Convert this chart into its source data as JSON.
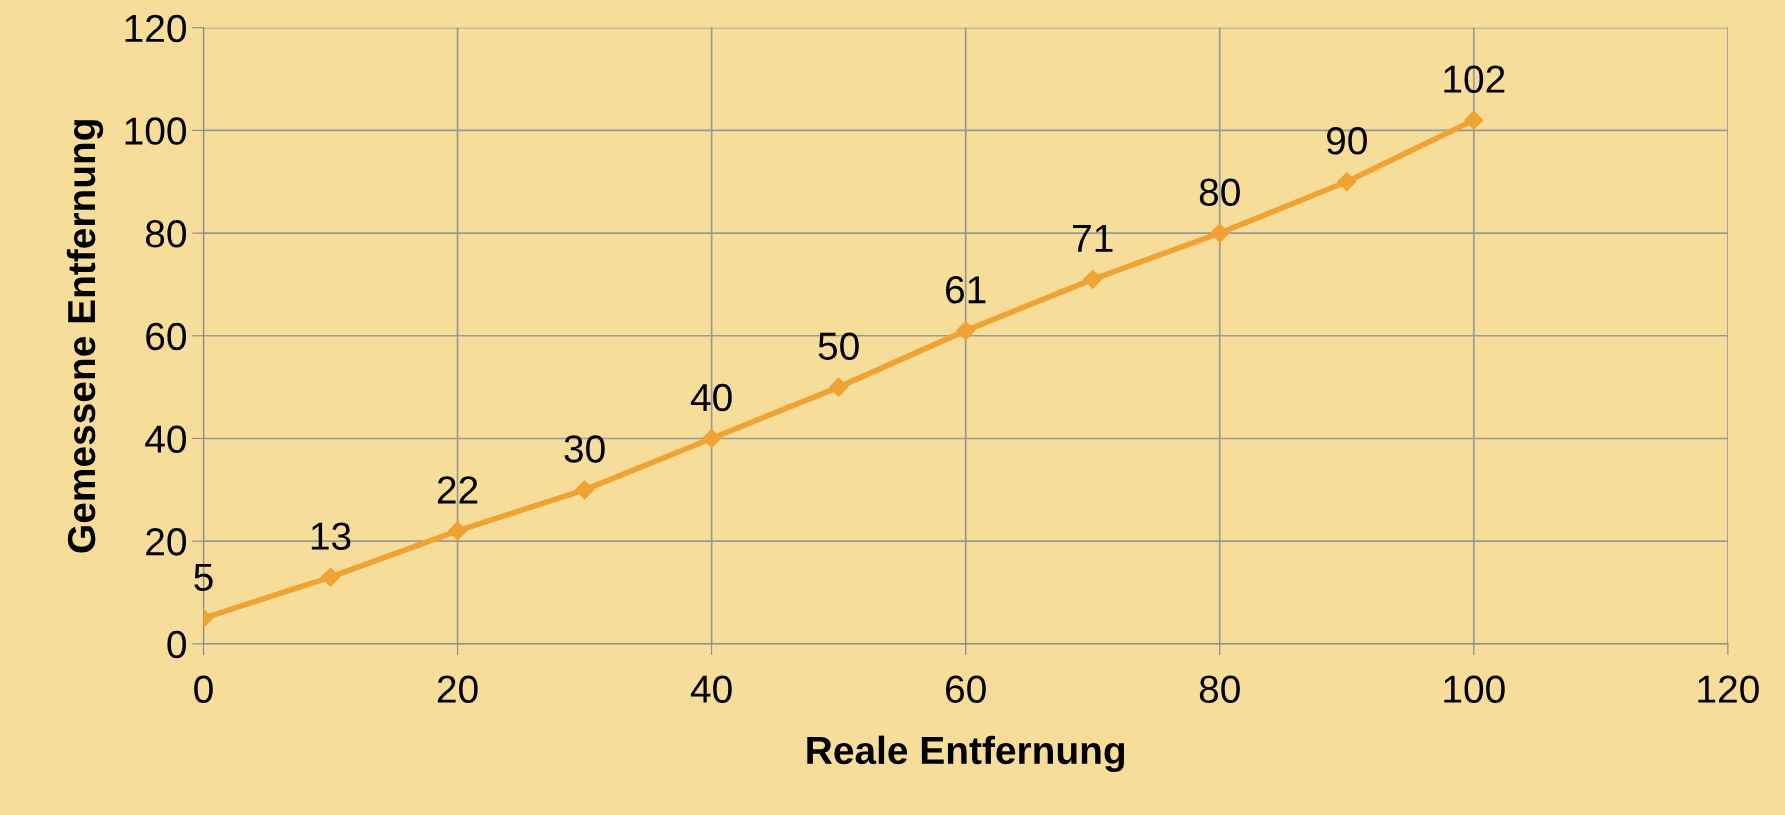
{
  "chart_data": {
    "type": "line",
    "xlabel": "Reale Entfernung",
    "ylabel": "Gemessene Entfernung",
    "x": [
      0,
      10,
      20,
      30,
      40,
      50,
      60,
      70,
      80,
      90,
      100
    ],
    "series": [
      {
        "color": "#f0a232",
        "values": [
          5,
          13,
          22,
          30,
          40,
          50,
          61,
          71,
          80,
          90,
          102
        ]
      }
    ],
    "xlim": [
      0,
      120
    ],
    "xticks": [
      0,
      20,
      40,
      60,
      80,
      100,
      120
    ],
    "ylim": [
      0,
      120
    ],
    "yticks": [
      0,
      20,
      40,
      60,
      80,
      100,
      120
    ],
    "grid": true,
    "marker": "diamond",
    "line_style": "solid",
    "data_labels": true
  }
}
